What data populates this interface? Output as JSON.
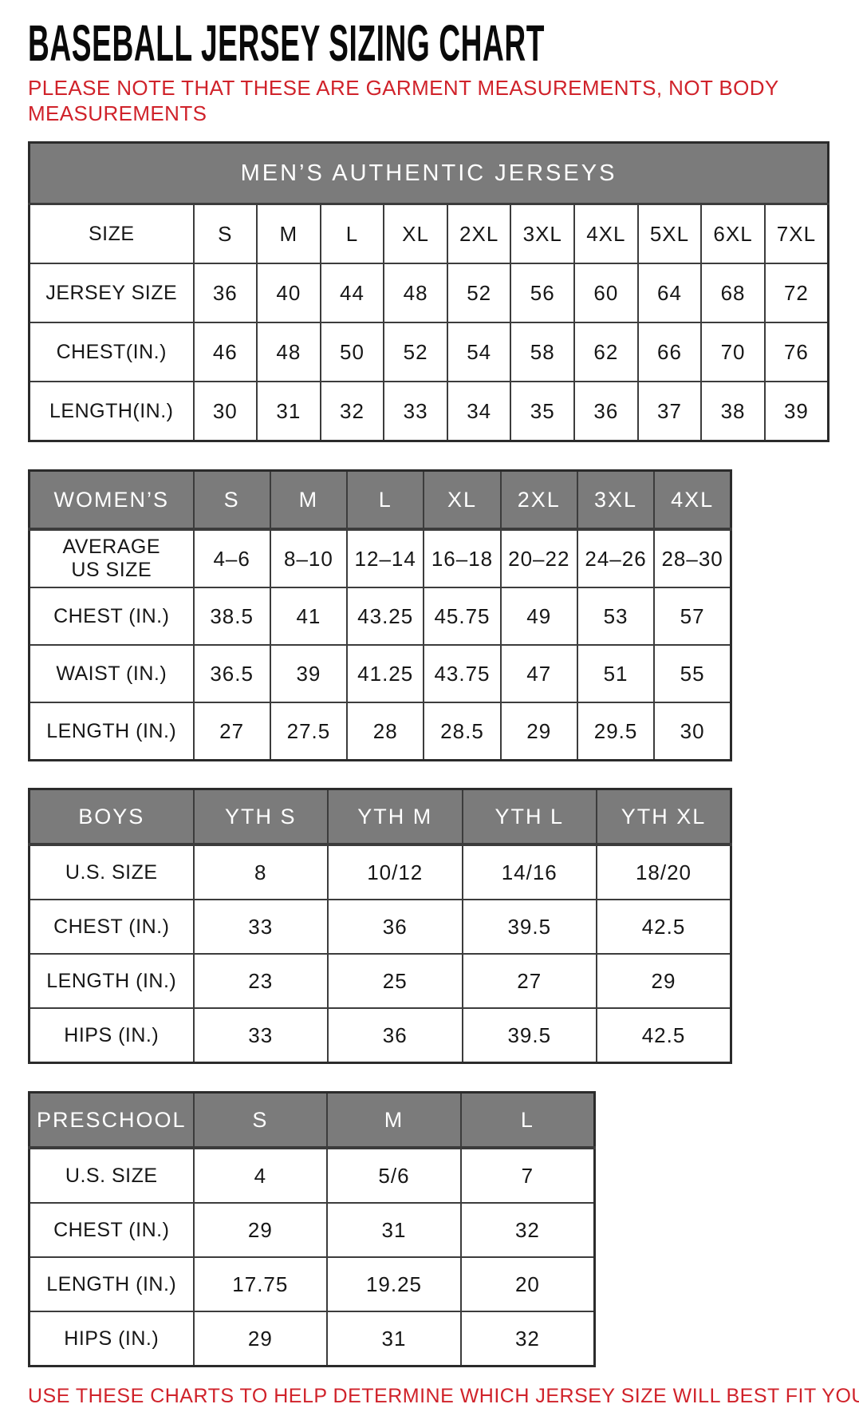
{
  "page": {
    "title": "BASEBALL JERSEY SIZING CHART",
    "note": "PLEASE NOTE THAT THESE ARE GARMENT MEASUREMENTS, NOT BODY\nMEASUREMENTS",
    "footer": "USE THESE CHARTS TO HELP DETERMINE WHICH JERSEY SIZE WILL BEST FIT YOU.",
    "colors": {
      "accent_red": "#d0222a",
      "header_gray": "#7b7b7b",
      "border_dark": "#3c3c3c",
      "title_black": "#0a0a0a"
    }
  },
  "chart_data": [
    {
      "type": "table",
      "name": "mens",
      "banner": "MEN’S AUTHENTIC JERSEYS",
      "rows": [
        {
          "label": "SIZE",
          "values": [
            "S",
            "M",
            "L",
            "XL",
            "2XL",
            "3XL",
            "4XL",
            "5XL",
            "6XL",
            "7XL"
          ]
        },
        {
          "label": "JERSEY SIZE",
          "values": [
            "36",
            "40",
            "44",
            "48",
            "52",
            "56",
            "60",
            "64",
            "68",
            "72"
          ]
        },
        {
          "label": "CHEST(IN.)",
          "values": [
            "46",
            "48",
            "50",
            "52",
            "54",
            "58",
            "62",
            "66",
            "70",
            "76"
          ]
        },
        {
          "label": "LENGTH(IN.)",
          "values": [
            "30",
            "31",
            "32",
            "33",
            "34",
            "35",
            "36",
            "37",
            "38",
            "39"
          ]
        }
      ]
    },
    {
      "type": "table",
      "name": "womens",
      "header": {
        "label": "WOMEN’S",
        "values": [
          "S",
          "M",
          "L",
          "XL",
          "2XL",
          "3XL",
          "4XL"
        ]
      },
      "rows": [
        {
          "label": "AVERAGE\nUS SIZE",
          "values": [
            "4–6",
            "8–10",
            "12–14",
            "16–18",
            "20–22",
            "24–26",
            "28–30"
          ]
        },
        {
          "label": "CHEST (IN.)",
          "values": [
            "38.5",
            "41",
            "43.25",
            "45.75",
            "49",
            "53",
            "57"
          ]
        },
        {
          "label": "WAIST (IN.)",
          "values": [
            "36.5",
            "39",
            "41.25",
            "43.75",
            "47",
            "51",
            "55"
          ]
        },
        {
          "label": "LENGTH (IN.)",
          "values": [
            "27",
            "27.5",
            "28",
            "28.5",
            "29",
            "29.5",
            "30"
          ]
        }
      ]
    },
    {
      "type": "table",
      "name": "boys",
      "header": {
        "label": "BOYS",
        "values": [
          "YTH S",
          "YTH M",
          "YTH L",
          "YTH XL"
        ]
      },
      "rows": [
        {
          "label": "U.S. SIZE",
          "values": [
            "8",
            "10/12",
            "14/16",
            "18/20"
          ]
        },
        {
          "label": "CHEST (IN.)",
          "values": [
            "33",
            "36",
            "39.5",
            "42.5"
          ]
        },
        {
          "label": "LENGTH (IN.)",
          "values": [
            "23",
            "25",
            "27",
            "29"
          ]
        },
        {
          "label": "HIPS (IN.)",
          "values": [
            "33",
            "36",
            "39.5",
            "42.5"
          ]
        }
      ]
    },
    {
      "type": "table",
      "name": "preschool",
      "header": {
        "label": "PRESCHOOL",
        "values": [
          "S",
          "M",
          "L"
        ]
      },
      "rows": [
        {
          "label": "U.S. SIZE",
          "values": [
            "4",
            "5/6",
            "7"
          ]
        },
        {
          "label": "CHEST (IN.)",
          "values": [
            "29",
            "31",
            "32"
          ]
        },
        {
          "label": "LENGTH (IN.)",
          "values": [
            "17.75",
            "19.25",
            "20"
          ]
        },
        {
          "label": "HIPS (IN.)",
          "values": [
            "29",
            "31",
            "32"
          ]
        }
      ]
    }
  ]
}
